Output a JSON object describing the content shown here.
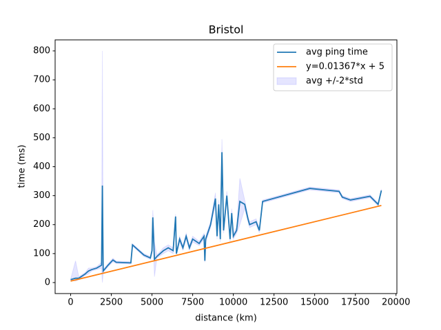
{
  "chart_data": {
    "type": "line",
    "title": "Bristol",
    "xlabel": "distance (km)",
    "ylabel": "time (ms)",
    "xlim": [
      -955,
      20055
    ],
    "ylim": [
      -38,
      838
    ],
    "xticks": [
      0,
      2500,
      5000,
      7500,
      10000,
      12500,
      15000,
      17500,
      20000
    ],
    "yticks": [
      0,
      100,
      200,
      300,
      400,
      500,
      600,
      700,
      800
    ],
    "legend": "upper right",
    "series": [
      {
        "name": "avg ping time",
        "color": "#1f77b4",
        "x": [
          0,
          300,
          500,
          900,
          1100,
          1300,
          1600,
          1900,
          1950,
          2000,
          2300,
          2600,
          2800,
          3700,
          3800,
          4500,
          4900,
          5000,
          5050,
          5150,
          5300,
          5700,
          6000,
          6300,
          6450,
          6500,
          6700,
          6900,
          7100,
          7300,
          7500,
          7900,
          8200,
          8250,
          8300,
          8600,
          8900,
          9000,
          9100,
          9200,
          9300,
          9400,
          9600,
          9800,
          9900,
          10000,
          10200,
          10400,
          10700,
          10900,
          11000,
          11400,
          11600,
          11800,
          14700,
          16500,
          16700,
          17200,
          18400,
          18900,
          19100
        ],
        "values": [
          10,
          15,
          15,
          30,
          40,
          45,
          50,
          60,
          335,
          40,
          60,
          78,
          70,
          68,
          130,
          95,
          85,
          110,
          225,
          80,
          90,
          110,
          120,
          110,
          228,
          100,
          150,
          120,
          160,
          120,
          150,
          135,
          160,
          75,
          150,
          200,
          290,
          160,
          270,
          150,
          450,
          180,
          300,
          150,
          240,
          160,
          180,
          280,
          270,
          220,
          200,
          210,
          180,
          280,
          325,
          315,
          295,
          285,
          298,
          270,
          318
        ]
      },
      {
        "name": "y=0.01367*x + 5",
        "color": "#ff7f0e",
        "x": [
          0,
          19100
        ],
        "values": [
          5,
          266.1
        ]
      },
      {
        "name": "avg +/-2*std",
        "type": "band",
        "color": "#0000ff",
        "lower": [
          8,
          5,
          10,
          25,
          30,
          40,
          45,
          50,
          0,
          35,
          55,
          72,
          66,
          64,
          126,
          90,
          80,
          100,
          200,
          20,
          85,
          100,
          110,
          100,
          220,
          95,
          140,
          112,
          150,
          112,
          140,
          128,
          150,
          70,
          140,
          190,
          270,
          150,
          255,
          140,
          405,
          170,
          285,
          140,
          225,
          150,
          170,
          200,
          255,
          210,
          190,
          200,
          172,
          275,
          320,
          310,
          290,
          280,
          293,
          265,
          313
        ],
        "upper": [
          12,
          75,
          20,
          35,
          50,
          50,
          55,
          70,
          800,
          45,
          65,
          84,
          74,
          72,
          134,
          100,
          90,
          120,
          250,
          140,
          95,
          120,
          130,
          120,
          236,
          105,
          160,
          128,
          170,
          128,
          160,
          142,
          170,
          80,
          160,
          210,
          310,
          170,
          285,
          160,
          495,
          190,
          315,
          160,
          255,
          170,
          190,
          360,
          285,
          230,
          210,
          220,
          188,
          285,
          330,
          320,
          300,
          290,
          303,
          275,
          323
        ]
      }
    ]
  }
}
